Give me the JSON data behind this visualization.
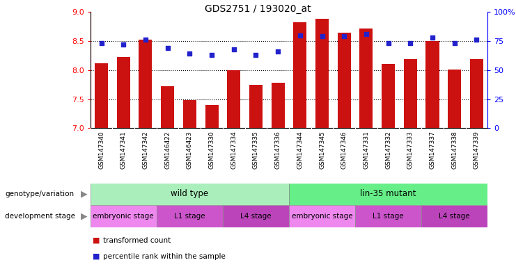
{
  "title": "GDS2751 / 193020_at",
  "samples": [
    "GSM147340",
    "GSM147341",
    "GSM147342",
    "GSM146422",
    "GSM146423",
    "GSM147330",
    "GSM147334",
    "GSM147335",
    "GSM147336",
    "GSM147344",
    "GSM147345",
    "GSM147346",
    "GSM147331",
    "GSM147332",
    "GSM147333",
    "GSM147337",
    "GSM147338",
    "GSM147339"
  ],
  "bar_values": [
    8.12,
    8.23,
    8.52,
    7.72,
    7.48,
    7.4,
    8.0,
    7.75,
    7.78,
    8.82,
    8.88,
    8.65,
    8.72,
    8.1,
    8.19,
    8.5,
    8.01,
    8.19
  ],
  "dot_values": [
    73,
    72,
    76,
    69,
    64,
    63,
    68,
    63,
    66,
    80,
    79,
    79,
    81,
    73,
    73,
    78,
    73,
    76
  ],
  "ylim_left": [
    7,
    9
  ],
  "ylim_right": [
    0,
    100
  ],
  "yticks_left": [
    7.0,
    7.5,
    8.0,
    8.5,
    9.0
  ],
  "yticks_right": [
    0,
    25,
    50,
    75,
    100
  ],
  "bar_color": "#cc1111",
  "dot_color": "#2222cc",
  "xtick_bg_color": "#cccccc",
  "genotype_groups": [
    {
      "label": "wild type",
      "start": 0,
      "end": 9,
      "color": "#aaeebb"
    },
    {
      "label": "lin-35 mutant",
      "start": 9,
      "end": 18,
      "color": "#66ee88"
    }
  ],
  "dev_stage_groups": [
    {
      "label": "embryonic stage",
      "start": 0,
      "end": 3,
      "color": "#ee88ee"
    },
    {
      "label": "L1 stage",
      "start": 3,
      "end": 6,
      "color": "#cc55cc"
    },
    {
      "label": "L4 stage",
      "start": 6,
      "end": 9,
      "color": "#bb44bb"
    },
    {
      "label": "embryonic stage",
      "start": 9,
      "end": 12,
      "color": "#ee88ee"
    },
    {
      "label": "L1 stage",
      "start": 12,
      "end": 15,
      "color": "#cc55cc"
    },
    {
      "label": "L4 stage",
      "start": 15,
      "end": 18,
      "color": "#bb44bb"
    }
  ]
}
